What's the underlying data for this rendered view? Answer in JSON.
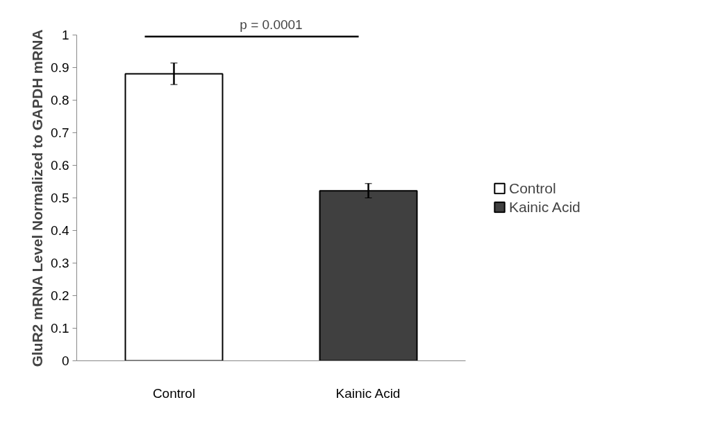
{
  "chart_data": {
    "type": "bar",
    "categories": [
      "Control",
      "Kainic Acid"
    ],
    "series": [
      {
        "name": "Control",
        "color": "#ffffff",
        "values": [
          0.881,
          null
        ],
        "errors": [
          0.033,
          null
        ]
      },
      {
        "name": "Kainic Acid",
        "color": "#404040",
        "values": [
          null,
          0.522
        ],
        "errors": [
          null,
          0.022
        ]
      }
    ],
    "ylabel": "GluR2 mRNA Level Normalized to GAPDH mRNA",
    "ylim": [
      0,
      1
    ],
    "yticks": [
      0,
      0.1,
      0.2,
      0.3,
      0.4,
      0.5,
      0.6,
      0.7,
      0.8,
      0.9,
      1
    ],
    "annotations": [
      "p = 0.0001"
    ],
    "grid": false,
    "legend": "right"
  }
}
